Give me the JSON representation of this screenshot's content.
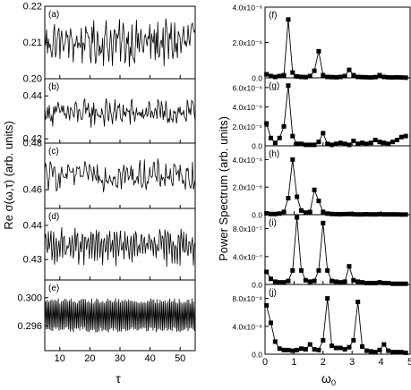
{
  "figure": {
    "left_ylabel_text": "Re σ(ω,τ) (arb. units)",
    "left_xlabel": "τ",
    "right_ylabel": "Power Spectrum (arb. units)",
    "right_xlabel_base": "ω",
    "right_xlabel_sub": "0"
  },
  "chart_data": [
    {
      "type": "line",
      "panel": "(a)",
      "column": "left",
      "xlim": [
        5,
        55
      ],
      "ylim": [
        0.2,
        0.22
      ],
      "yticks": [
        0.2,
        0.21,
        0.22
      ],
      "ytick_labels": [
        "0.20",
        "0.21",
        "0.22"
      ],
      "series_mean": 0.21,
      "series_amp": 0.0055,
      "points": 170,
      "period": 0
    },
    {
      "type": "line",
      "panel": "(b)",
      "column": "left",
      "xlim": [
        5,
        55
      ],
      "ylim": [
        0.418,
        0.448
      ],
      "yticks": [
        0.42,
        0.44
      ],
      "ytick_labels": [
        "0.42",
        "0.44"
      ],
      "series_mean": 0.432,
      "series_amp": 0.0055,
      "points": 170,
      "period": 0
    },
    {
      "type": "line",
      "panel": "(c)",
      "column": "left",
      "xlim": [
        5,
        55
      ],
      "ylim": [
        0.452,
        0.48
      ],
      "yticks": [
        0.46,
        0.48
      ],
      "ytick_labels": [
        "0.46",
        "0.48"
      ],
      "series_mean": 0.466,
      "series_amp": 0.0058,
      "points": 170,
      "period": 0
    },
    {
      "type": "line",
      "panel": "(d)",
      "column": "left",
      "xlim": [
        5,
        55
      ],
      "ylim": [
        0.424,
        0.445
      ],
      "yticks": [
        0.43,
        0.44
      ],
      "ytick_labels": [
        "0.43",
        "0.44"
      ],
      "series_mean": 0.434,
      "series_amp": 0.005,
      "points": 170,
      "period": 3
    },
    {
      "type": "line",
      "panel": "(e)",
      "column": "left",
      "xlim": [
        5,
        55
      ],
      "ylim": [
        0.2925,
        0.3025
      ],
      "yticks": [
        0.296,
        0.3
      ],
      "ytick_labels": [
        "0.296",
        "0.300"
      ],
      "series_mean": 0.2975,
      "series_amp": 0.0022,
      "points": 190,
      "period": 2,
      "xticks": [
        10,
        20,
        30,
        40,
        50
      ],
      "xtick_labels": [
        "10",
        "20",
        "30",
        "40",
        "50"
      ]
    },
    {
      "type": "line",
      "panel": "(f)",
      "column": "right",
      "xlim": [
        0,
        5
      ],
      "ylim": [
        0,
        4e-06
      ],
      "yticks": [
        0,
        2e-06,
        4e-06
      ],
      "ytick_labels": [
        "0.0",
        "2.0x10⁻⁶",
        "4.0x10⁻⁶"
      ],
      "x": [
        0.05,
        0.2,
        0.35,
        0.5,
        0.65,
        0.8,
        0.95,
        1.1,
        1.25,
        1.4,
        1.55,
        1.7,
        1.85,
        2.0,
        2.15,
        2.3,
        2.45,
        2.6,
        2.75,
        2.9,
        3.05,
        3.2,
        3.35,
        3.5,
        3.65,
        3.8,
        3.95,
        4.1,
        4.25,
        4.4,
        4.55,
        4.7,
        4.85
      ],
      "y": [
        2e-07,
        1e-07,
        5e-08,
        1e-07,
        1.5e-07,
        3.3e-06,
        3e-07,
        8e-08,
        5e-08,
        4e-08,
        1e-07,
        4e-07,
        1.5e-06,
        1.5e-07,
        5e-08,
        4e-08,
        3e-08,
        5e-08,
        1e-07,
        4.5e-07,
        1.5e-07,
        5e-08,
        4e-08,
        3e-08,
        2e-08,
        4e-08,
        1.5e-07,
        5e-08,
        3e-08,
        2e-08,
        3e-08,
        2e-08,
        1e-08
      ]
    },
    {
      "type": "line",
      "panel": "(g)",
      "column": "right",
      "xlim": [
        0,
        5
      ],
      "ylim": [
        0,
        7e-06
      ],
      "yticks": [
        0,
        2e-06,
        4e-06,
        6e-06
      ],
      "ytick_labels": [
        "0.0",
        "2.0x10⁻⁶",
        "4.0x10⁻⁶",
        "6.0x10⁻⁶"
      ],
      "x": [
        0.05,
        0.2,
        0.35,
        0.5,
        0.65,
        0.8,
        0.95,
        1.1,
        1.25,
        1.4,
        1.55,
        1.7,
        1.85,
        2.0,
        2.15,
        2.3,
        2.45,
        2.6,
        2.75,
        2.9,
        3.05,
        3.2,
        3.35,
        3.5,
        3.65,
        3.8,
        3.95,
        4.1,
        4.25,
        4.4,
        4.55,
        4.7,
        4.85
      ],
      "y": [
        2.3e-06,
        8e-07,
        3e-07,
        8e-07,
        2e-06,
        6.2e-06,
        1e-06,
        2e-07,
        2e-07,
        1e-07,
        1e-07,
        1e-07,
        4e-07,
        1.3e-06,
        2e-07,
        1e-07,
        2e-07,
        3e-07,
        2e-07,
        1e-07,
        5e-07,
        2e-07,
        3e-07,
        2e-07,
        3e-07,
        6e-07,
        4e-07,
        3e-07,
        2e-07,
        4e-07,
        6e-07,
        9e-07,
        1e-06
      ]
    },
    {
      "type": "line",
      "panel": "(h)",
      "column": "right",
      "xlim": [
        0,
        5
      ],
      "ylim": [
        0,
        5e-06
      ],
      "yticks": [
        0,
        2e-06,
        4e-06
      ],
      "ytick_labels": [
        "0.0",
        "2.0x10⁻⁶",
        "4.0x10⁻⁶"
      ],
      "x": [
        0.05,
        0.2,
        0.35,
        0.5,
        0.65,
        0.8,
        0.95,
        1.1,
        1.25,
        1.4,
        1.55,
        1.7,
        1.85,
        2.0,
        2.15,
        2.3,
        2.45,
        2.6,
        2.75,
        2.9,
        3.05,
        3.2,
        3.35,
        3.5,
        3.65,
        3.8,
        3.95,
        4.1,
        4.25,
        4.4,
        4.55,
        4.7,
        4.85
      ],
      "y": [
        1e-07,
        5e-08,
        5e-08,
        8e-08,
        2e-07,
        1.2e-06,
        4e-06,
        1.3e-06,
        3e-07,
        1.5e-07,
        2e-07,
        1.8e-06,
        1e-06,
        2e-07,
        8e-08,
        5e-08,
        4e-08,
        3e-08,
        4e-08,
        5e-08,
        3e-08,
        2e-08,
        2e-08,
        3e-08,
        2e-08,
        2e-08,
        3e-08,
        2e-08,
        2e-08,
        2e-08,
        2e-08,
        1e-08,
        1e-08
      ]
    },
    {
      "type": "line",
      "panel": "(i)",
      "column": "right",
      "xlim": [
        0,
        5
      ],
      "ylim": [
        0,
        1e-06
      ],
      "yticks": [
        0,
        4e-07,
        8e-07
      ],
      "ytick_labels": [
        "0.0",
        "4.0x10⁻⁷",
        "8.0x10⁻⁷"
      ],
      "x": [
        0.05,
        0.2,
        0.35,
        0.5,
        0.65,
        0.8,
        0.95,
        1.1,
        1.25,
        1.4,
        1.55,
        1.7,
        1.85,
        2.0,
        2.15,
        2.3,
        2.45,
        2.6,
        2.75,
        2.9,
        3.05,
        3.2,
        3.35,
        3.5,
        3.65,
        3.8,
        3.95,
        4.1,
        4.25,
        4.4,
        4.55,
        4.7,
        4.85
      ],
      "y": [
        1.8e-07,
        8e-08,
        4e-08,
        3e-08,
        3e-08,
        5e-08,
        2e-07,
        9.6e-07,
        2e-07,
        6e-08,
        4e-08,
        5e-08,
        2e-07,
        8.8e-07,
        2e-07,
        5e-08,
        4e-08,
        3e-08,
        4e-08,
        2.6e-07,
        6e-08,
        4e-08,
        3e-08,
        2e-08,
        2e-08,
        2e-08,
        3e-08,
        2e-08,
        2e-08,
        1e-08,
        1e-08,
        1e-08,
        1e-08
      ]
    },
    {
      "type": "line",
      "panel": "(j)",
      "column": "right",
      "xlim": [
        0,
        5
      ],
      "ylim": [
        0,
        1e-07
      ],
      "yticks": [
        0,
        4e-08,
        8e-08
      ],
      "ytick_labels": [
        "0.0",
        "4.0x10⁻⁸",
        "8.0x10⁻⁸"
      ],
      "xticks": [
        0,
        1,
        2,
        3,
        4,
        5
      ],
      "xtick_labels": [
        "0",
        "1",
        "2",
        "3",
        "4",
        "5"
      ],
      "x": [
        0.05,
        0.2,
        0.35,
        0.5,
        0.65,
        0.8,
        0.95,
        1.1,
        1.25,
        1.4,
        1.55,
        1.7,
        1.85,
        2.0,
        2.15,
        2.3,
        2.45,
        2.6,
        2.75,
        2.9,
        3.05,
        3.2,
        3.35,
        3.5,
        3.65,
        3.8,
        3.95,
        4.1,
        4.25,
        4.4,
        4.55,
        4.7,
        4.85
      ],
      "y": [
        7e-08,
        4.5e-08,
        1.8e-08,
        8e-09,
        6e-09,
        6e-09,
        5e-09,
        6e-09,
        8e-09,
        7e-09,
        1.4e-08,
        7e-09,
        6e-09,
        2e-08,
        8e-08,
        1.2e-08,
        9e-09,
        9e-09,
        7e-09,
        1e-08,
        2e-08,
        7.5e-08,
        1.1e-08,
        5e-09,
        4e-09,
        3e-09,
        6e-09,
        1.4e-08,
        5e-09,
        3e-09,
        3e-09,
        3e-09,
        2e-09
      ]
    }
  ]
}
